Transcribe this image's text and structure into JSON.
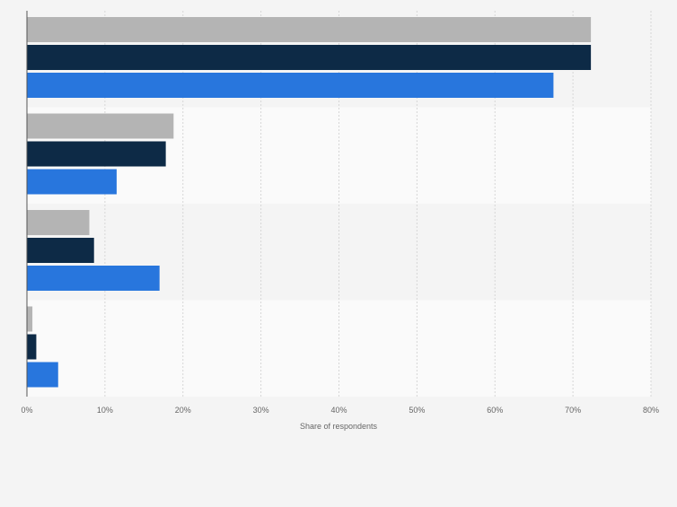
{
  "chart_data": {
    "type": "bar",
    "orientation": "horizontal",
    "categories": [
      "",
      "",
      "",
      ""
    ],
    "series": [
      {
        "color": "#b4b4b4",
        "values": [
          72.3,
          18.8,
          8.0,
          0.7
        ]
      },
      {
        "color": "#0d2a46",
        "values": [
          72.3,
          17.8,
          8.6,
          1.2
        ]
      },
      {
        "color": "#2876dd",
        "values": [
          67.5,
          11.5,
          17.0,
          4.0
        ]
      }
    ],
    "title": "",
    "xlabel": "Share of respondents",
    "ylabel": "",
    "xlim": [
      0,
      80
    ],
    "x_ticks": [
      "0%",
      "10%",
      "20%",
      "30%",
      "40%",
      "50%",
      "60%",
      "70%",
      "80%"
    ],
    "grid": true,
    "legend": "none"
  }
}
